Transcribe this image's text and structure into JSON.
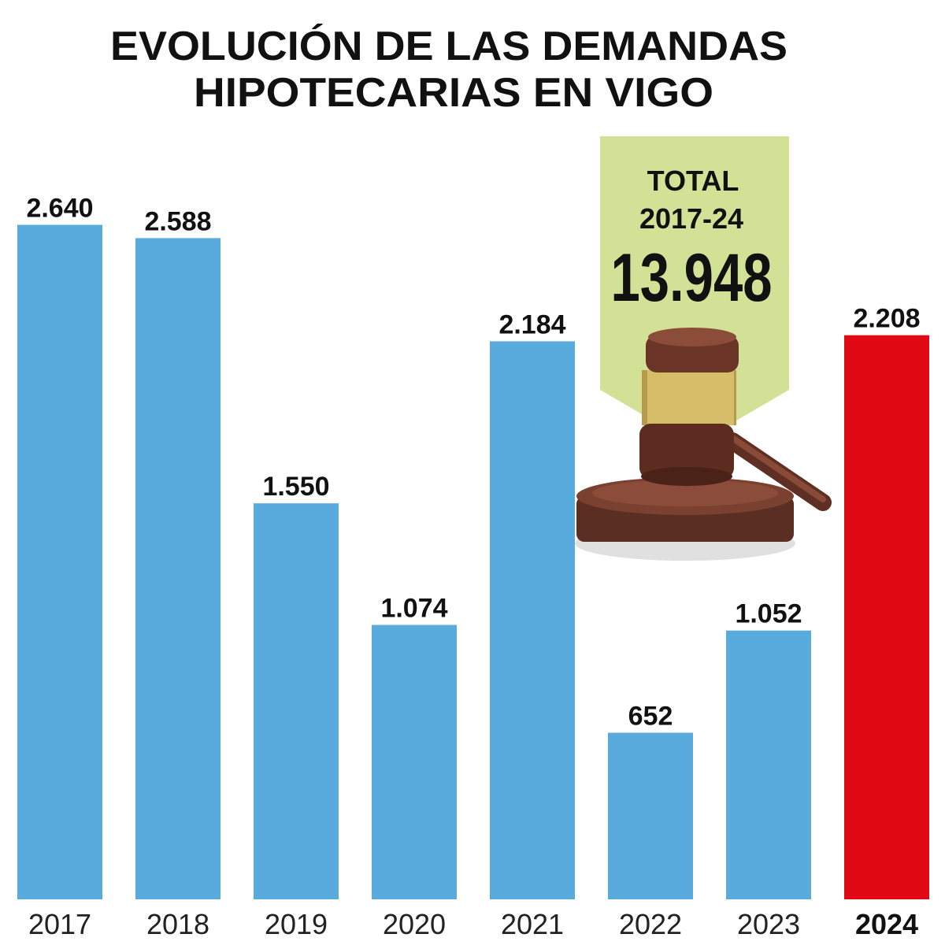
{
  "chart_data": {
    "type": "bar",
    "title_lines": [
      "EVOLUCIÓN DE LAS DEMANDAS",
      "HIPOTECARIAS EN VIGO"
    ],
    "categories": [
      "2017",
      "2018",
      "2019",
      "2020",
      "2021",
      "2022",
      "2023",
      "2024"
    ],
    "values": [
      2640,
      2588,
      1550,
      1074,
      2184,
      652,
      1052,
      2208
    ],
    "value_labels": [
      "2.640",
      "2.588",
      "1.550",
      "1.074",
      "2.184",
      "652",
      "1.052",
      "2.208"
    ],
    "highlight_category": "2024",
    "ylim": [
      0,
      3520
    ],
    "grid": false,
    "colors": {
      "bar": "#58abdc",
      "highlight": "#e10a14",
      "callout": "#d3e196"
    },
    "callout": {
      "label": "TOTAL",
      "period": "2017-24",
      "value": "13.948",
      "icon": "gavel-icon"
    }
  }
}
